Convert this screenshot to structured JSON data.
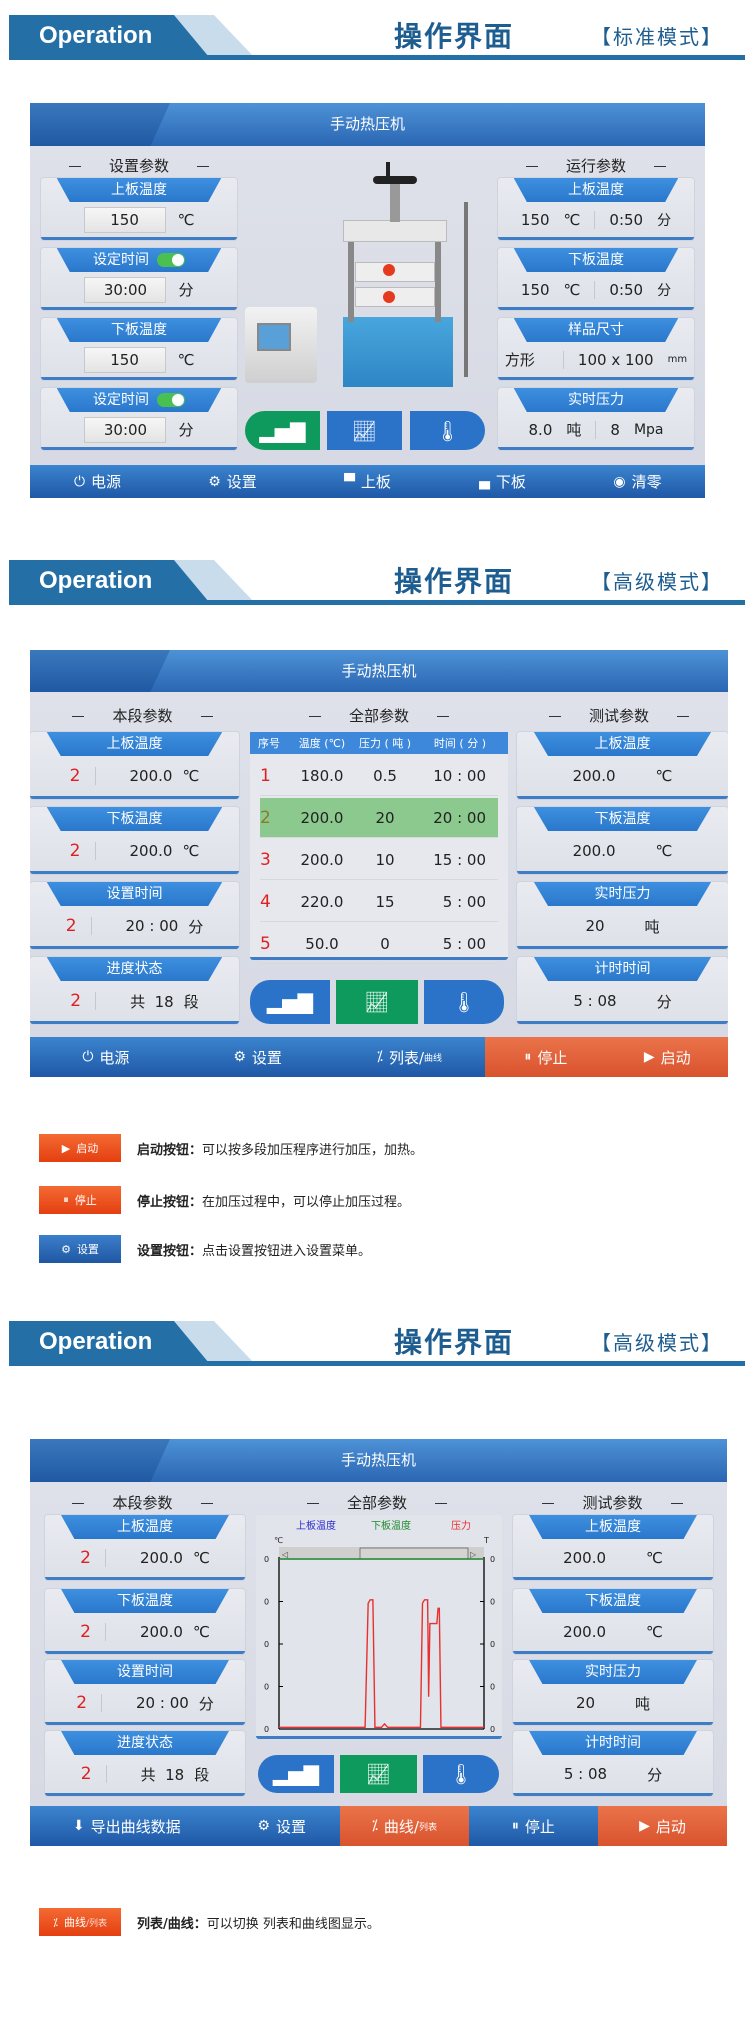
{
  "colors": {
    "brand": "#236fa6",
    "panel_blue": "#2b73c8",
    "active_green": "#0e9a5c",
    "orange": "#e0603a",
    "highlight_row": "#8cc98e",
    "segment_red": "#e02020"
  },
  "sections": [
    {
      "header": {
        "brand": "Operation",
        "title": "操作界面",
        "mode": "【标准模式】"
      },
      "panel": {
        "title": "手动热压机",
        "left_heading": "设置参数",
        "right_heading": "运行参数",
        "left_cards": [
          {
            "label": "上板温度",
            "value": "150",
            "unit": "℃"
          },
          {
            "label": "设定时间",
            "toggle": true,
            "value": "30:00",
            "unit": "分"
          },
          {
            "label": "下板温度",
            "value": "150",
            "unit": "℃"
          },
          {
            "label": "设定时间",
            "toggle": true,
            "value": "30:00",
            "unit": "分"
          }
        ],
        "right_cards": [
          {
            "label": "上板温度",
            "v1": "150",
            "u1": "℃",
            "v2": "0:50",
            "u2": "分"
          },
          {
            "label": "下板温度",
            "v1": "150",
            "u1": "℃",
            "v2": "0:50",
            "u2": "分"
          },
          {
            "label": "样品尺寸",
            "v1": "方形",
            "u1": "",
            "v2": "100 x 100",
            "u2": "mm"
          },
          {
            "label": "实时压力",
            "v1": "8.0",
            "u1": "吨",
            "v2": "8",
            "u2": "Mpa"
          }
        ],
        "center_buttons": [
          {
            "icon": "bar-chart-icon",
            "active": true
          },
          {
            "icon": "line-chart-icon",
            "active": false
          },
          {
            "icon": "thermometer-icon",
            "active": false
          }
        ],
        "bottom": [
          {
            "icon": "power-icon",
            "label": "电源"
          },
          {
            "icon": "gear-icon",
            "label": "设置"
          },
          {
            "icon": "upper-plate-icon",
            "label": "上板"
          },
          {
            "icon": "lower-plate-icon",
            "label": "下板"
          },
          {
            "icon": "zero-icon",
            "label": "清零"
          }
        ]
      }
    },
    {
      "header": {
        "brand": "Operation",
        "title": "操作界面",
        "mode": "【高级模式】"
      },
      "panel": {
        "title": "手动热压机",
        "left_heading": "本段参数",
        "center_heading": "全部参数",
        "right_heading": "测试参数",
        "left_cards": [
          {
            "label": "上板温度",
            "idx": "2",
            "value": "200.0",
            "unit": "℃"
          },
          {
            "label": "下板温度",
            "idx": "2",
            "value": "200.0",
            "unit": "℃"
          },
          {
            "label": "设置时间",
            "idx": "2",
            "value": "20 : 00",
            "unit": "分"
          },
          {
            "label": "进度状态",
            "idx": "2",
            "value": "共  18",
            "unit": "段"
          }
        ],
        "table": {
          "columns": [
            "序号",
            "温度 (℃)",
            "压力 ( 吨 )",
            "时间 ( 分 )"
          ],
          "selected_row": 2,
          "rows": [
            [
              "1",
              "180.0",
              "0.5",
              "10 : 00"
            ],
            [
              "2",
              "200.0",
              "20",
              "20 : 00"
            ],
            [
              "3",
              "200.0",
              "10",
              "15 : 00"
            ],
            [
              "4",
              "220.0",
              "15",
              "5 : 00"
            ],
            [
              "5",
              "50.0",
              "0",
              "5 : 00"
            ]
          ]
        },
        "right_cards": [
          {
            "label": "上板温度",
            "value": "200.0",
            "unit": "℃"
          },
          {
            "label": "下板温度",
            "value": "200.0",
            "unit": "℃"
          },
          {
            "label": "实时压力",
            "value": "20",
            "unit": "吨"
          },
          {
            "label": "计时时间",
            "value": "5 : 08",
            "unit": "分"
          }
        ],
        "center_buttons": [
          {
            "icon": "bar-chart-icon",
            "active": false
          },
          {
            "icon": "line-chart-icon",
            "active": true
          },
          {
            "icon": "thermometer-icon",
            "active": false
          }
        ],
        "bottom": [
          {
            "icon": "power-icon",
            "label": "电源"
          },
          {
            "icon": "gear-icon",
            "label": "设置"
          },
          {
            "icon": "list-curve-icon",
            "label": "列表/",
            "sub": "曲线"
          },
          {
            "icon": "pause-icon",
            "label": "停止",
            "orange": true
          },
          {
            "icon": "play-icon",
            "label": "启动",
            "orange": true
          }
        ]
      }
    },
    {
      "header": {
        "brand": "Operation",
        "title": "操作界面",
        "mode": "【高级模式】"
      },
      "panel": {
        "title": "手动热压机",
        "left_heading": "本段参数",
        "center_heading": "全部参数",
        "right_heading": "测试参数",
        "left_cards": [
          {
            "label": "上板温度",
            "idx": "2",
            "value": "200.0",
            "unit": "℃"
          },
          {
            "label": "下板温度",
            "idx": "2",
            "value": "200.0",
            "unit": "℃"
          },
          {
            "label": "设置时间",
            "idx": "2",
            "value": "20 : 00",
            "unit": "分"
          },
          {
            "label": "进度状态",
            "idx": "2",
            "value": "共  18",
            "unit": "段"
          }
        ],
        "right_cards": [
          {
            "label": "上板温度",
            "value": "200.0",
            "unit": "℃"
          },
          {
            "label": "下板温度",
            "value": "200.0",
            "unit": "℃"
          },
          {
            "label": "实时压力",
            "value": "20",
            "unit": "吨"
          },
          {
            "label": "计时时间",
            "value": "5 : 08",
            "unit": "分"
          }
        ],
        "center_buttons": [
          {
            "icon": "bar-chart-icon",
            "active": false
          },
          {
            "icon": "line-chart-icon",
            "active": true
          },
          {
            "icon": "thermometer-icon",
            "active": false
          }
        ],
        "bottom": [
          {
            "icon": "export-icon",
            "label": "导出曲线数据"
          },
          {
            "icon": "gear-icon",
            "label": "设置"
          },
          {
            "icon": "list-curve-icon",
            "label": "曲线/",
            "sub": "列表",
            "orange": true
          },
          {
            "icon": "pause-icon",
            "label": "停止"
          },
          {
            "icon": "play-icon",
            "label": "启动",
            "orange": true
          }
        ]
      }
    }
  ],
  "chart_data": {
    "type": "line",
    "legend": [
      {
        "name": "上板温度",
        "color": "#2a2ad0"
      },
      {
        "name": "下板温度",
        "color": "#1e8a2e"
      },
      {
        "name": "压力",
        "color": "#e83030"
      }
    ],
    "left_unit": "℃",
    "right_unit": "T",
    "y_ticks": [
      "0",
      "0",
      "0",
      "0",
      "0"
    ],
    "grid": false,
    "ylim": [
      0,
      100
    ],
    "xlim": [
      0,
      100
    ],
    "series": [
      {
        "name": "下板温度",
        "color": "#1e8a2e",
        "points": [
          [
            0,
            100
          ],
          [
            100,
            100
          ]
        ]
      },
      {
        "name": "压力",
        "color": "#e83030",
        "points": [
          [
            0,
            1
          ],
          [
            42,
            1
          ],
          [
            43.5,
            74
          ],
          [
            44.5,
            76
          ],
          [
            45.8,
            76
          ],
          [
            46.8,
            1
          ],
          [
            50,
            1
          ],
          [
            51.5,
            3
          ],
          [
            53,
            1
          ],
          [
            69,
            1
          ],
          [
            70,
            74
          ],
          [
            71,
            76
          ],
          [
            72.5,
            76
          ],
          [
            73,
            19
          ],
          [
            73.6,
            62
          ],
          [
            77,
            62
          ],
          [
            77.6,
            71
          ],
          [
            78.2,
            71
          ],
          [
            79,
            1
          ],
          [
            100,
            1
          ]
        ]
      }
    ]
  },
  "legend": [
    {
      "button": "启动",
      "icon": "play-icon",
      "term": "启动按钮：",
      "desc": "可以按多段加压程序进行加压，加热。",
      "orange": true
    },
    {
      "button": "停止",
      "icon": "pause-icon",
      "term": "停止按钮：",
      "desc": "在加压过程中，可以停止加压过程。",
      "orange": true
    },
    {
      "button": "设置",
      "icon": "gear-icon",
      "term": "设置按钮：",
      "desc": "点击设置按钮进入设置菜单。",
      "orange": false
    },
    {
      "button": "曲线",
      "button_sub": "/列表",
      "icon": "list-curve-icon",
      "term": "列表/曲线：",
      "desc": "可以切换  列表和曲线图显示。",
      "orange": true
    }
  ]
}
